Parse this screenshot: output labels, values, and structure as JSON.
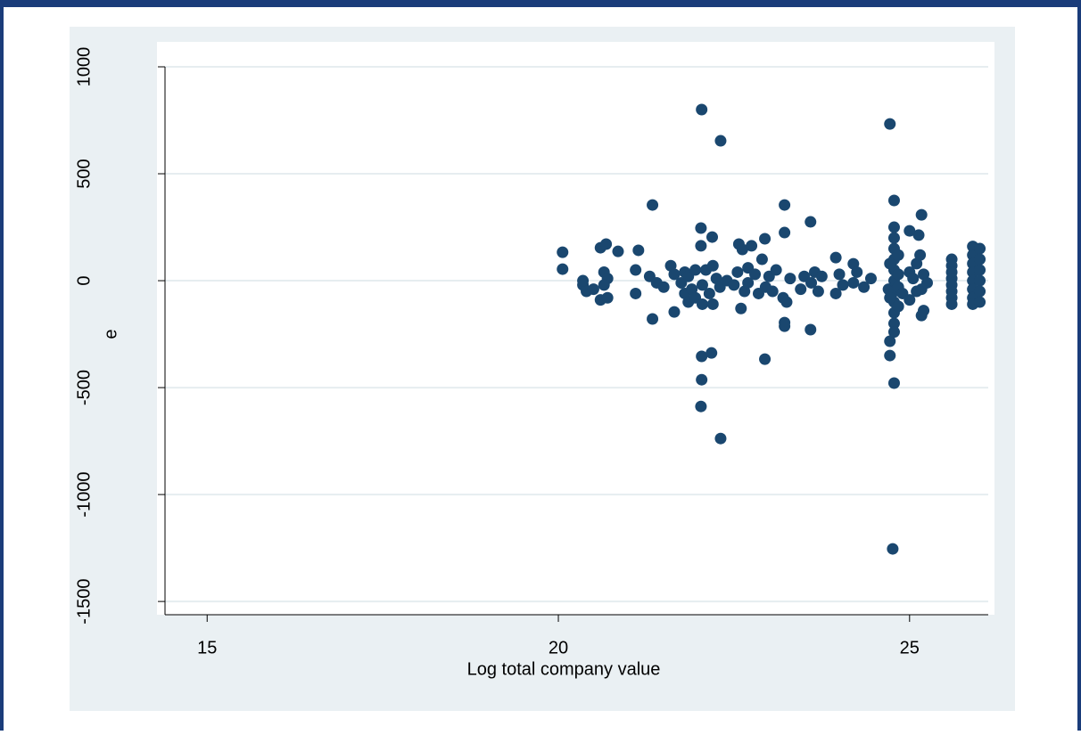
{
  "chart_data": {
    "type": "scatter",
    "xlabel": "Log total company value",
    "ylabel": "e",
    "color": "#1a476f",
    "grid": true,
    "xlim": [
      14.4,
      26.12
    ],
    "ylim": [
      -1562,
      1000
    ],
    "xticks": [
      15,
      20,
      25
    ],
    "yticks": [
      1000,
      500,
      0,
      -500,
      -1000,
      -1500
    ],
    "x": [
      20.06,
      20.06,
      20.35,
      20.4,
      20.5,
      20.35,
      20.6,
      20.68,
      20.6,
      20.7,
      20.65,
      20.7,
      20.65,
      20.85,
      21.1,
      21.1,
      21.14,
      21.3,
      21.34,
      21.34,
      21.4,
      21.5,
      21.6,
      21.65,
      21.65,
      21.75,
      21.8,
      21.8,
      21.85,
      21.85,
      21.9,
      21.95,
      21.95,
      22.03,
      22.03,
      22.04,
      22.04,
      22.04,
      22.03,
      22.05,
      22.05,
      22.1,
      22.15,
      22.19,
      22.18,
      22.2,
      22.2,
      22.25,
      22.31,
      22.31,
      22.3,
      22.4,
      22.5,
      22.55,
      22.57,
      22.62,
      22.6,
      22.65,
      22.7,
      22.7,
      22.75,
      22.8,
      22.85,
      22.94,
      22.94,
      22.9,
      22.95,
      23.0,
      23.05,
      23.1,
      23.2,
      23.22,
      23.22,
      23.22,
      23.22,
      23.25,
      23.3,
      23.45,
      23.5,
      23.59,
      23.59,
      23.6,
      23.65,
      23.7,
      23.75,
      23.95,
      23.95,
      24.0,
      24.05,
      24.2,
      24.2,
      24.25,
      24.35,
      24.45,
      24.7,
      24.72,
      24.72,
      24.72,
      24.76,
      24.78,
      24.78,
      24.78,
      24.78,
      24.78,
      24.78,
      24.78,
      24.78,
      24.78,
      24.78,
      24.78,
      24.78,
      24.78,
      24.72,
      24.72,
      24.84,
      24.84,
      24.84,
      24.84,
      24.9,
      25.0,
      25.0,
      25.0,
      25.05,
      25.1,
      25.1,
      25.13,
      25.15,
      25.17,
      25.17,
      25.17,
      25.2,
      25.2,
      25.25,
      25.6,
      25.6,
      25.6,
      25.6,
      25.6,
      25.6,
      25.6,
      25.6,
      25.9,
      25.9,
      25.9,
      25.9,
      25.9,
      25.9,
      25.9,
      25.9,
      26.0,
      26.0,
      26.0,
      26.0,
      26.0,
      26.0
    ],
    "values": [
      133,
      54,
      -20,
      -50,
      -40,
      0,
      154,
      171,
      -90,
      -80,
      40,
      10,
      -20,
      137,
      50,
      -60,
      142,
      20,
      354,
      -179,
      -10,
      -30,
      70,
      -146,
      30,
      -10,
      40,
      -60,
      -100,
      20,
      -40,
      50,
      -80,
      246,
      163,
      800,
      -354,
      -463,
      -588,
      -110,
      -20,
      50,
      -60,
      204,
      -338,
      -110,
      70,
      10,
      654,
      -738,
      -30,
      0,
      -20,
      40,
      171,
      146,
      -130,
      -50,
      60,
      -10,
      163,
      30,
      -60,
      196,
      -367,
      100,
      -30,
      20,
      -50,
      50,
      -80,
      354,
      225,
      -196,
      -213,
      -100,
      10,
      -40,
      20,
      275,
      -229,
      -10,
      40,
      -50,
      20,
      108,
      -60,
      30,
      -20,
      79,
      -10,
      40,
      -30,
      10,
      -40,
      733,
      -350,
      -283,
      -1254,
      -479,
      375,
      250,
      200,
      150,
      100,
      50,
      0,
      -50,
      -100,
      -150,
      -200,
      -240,
      80,
      -80,
      120,
      -120,
      30,
      -30,
      -60,
      233,
      40,
      -90,
      10,
      -50,
      80,
      213,
      120,
      308,
      -163,
      -40,
      30,
      -140,
      -10,
      100,
      70,
      40,
      10,
      -20,
      -50,
      -80,
      -110,
      160,
      120,
      80,
      40,
      0,
      -40,
      -80,
      -110,
      150,
      100,
      50,
      0,
      -50,
      -100
    ]
  }
}
